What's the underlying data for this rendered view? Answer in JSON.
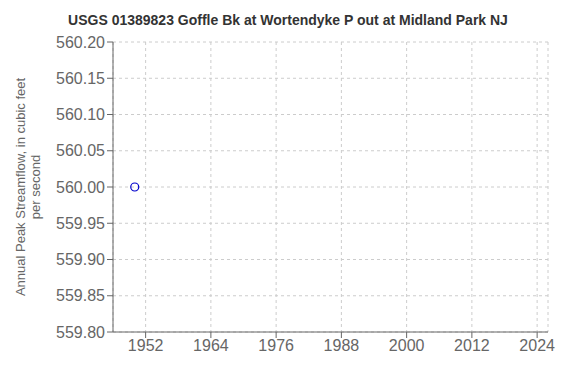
{
  "chart_data": {
    "type": "scatter",
    "title": "USGS 01389823 Goffle Bk at Wortendyke P out at Midland Park NJ",
    "ylabel": "Annual Peak Streamflow, in cubic feet\nper second",
    "x": [
      1950
    ],
    "values": [
      560.0
    ],
    "color": "#0000cc",
    "marker": "circle",
    "xlim": [
      1946,
      2026
    ],
    "xticks": [
      1952,
      1964,
      1976,
      1988,
      2000,
      2012,
      2024
    ],
    "ylim": [
      559.8,
      560.2
    ],
    "yticks": [
      {
        "value": 559.8,
        "label": "559.80"
      },
      559.85,
      {
        "value": 559.9,
        "label": "559.90"
      },
      559.95,
      {
        "value": 560.0,
        "label": "560.00"
      },
      560.05,
      {
        "value": 560.1,
        "label": "560.10"
      },
      560.15,
      {
        "value": 560.2,
        "label": "560.20"
      }
    ],
    "grid": true
  }
}
